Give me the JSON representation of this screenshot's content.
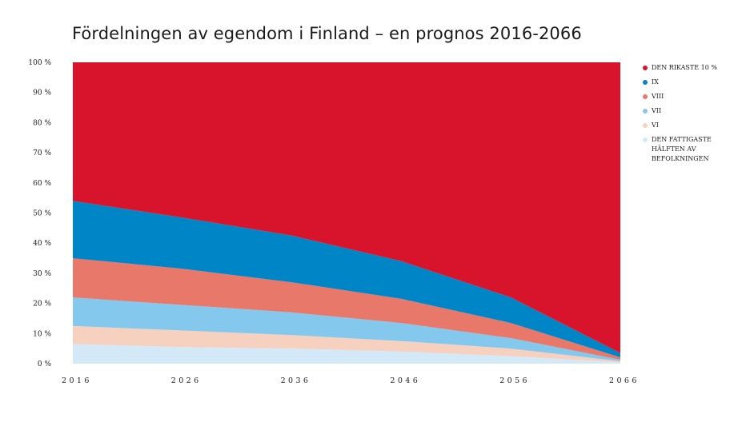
{
  "chart_data": {
    "type": "area",
    "stacked": true,
    "title": "Fördelningen av egendom i Finland – en prognos 2016-2066",
    "x": [
      2016,
      2026,
      2036,
      2046,
      2056,
      2066
    ],
    "x_tick_labels": [
      "2016",
      "2026",
      "2036",
      "2046",
      "2056",
      "2066"
    ],
    "y_tick_labels": [
      "0 %",
      "10 %",
      "20 %",
      "30 %",
      "40 %",
      "50 %",
      "60 %",
      "70 %",
      "80 %",
      "90 %",
      "100 %"
    ],
    "ylim": [
      0,
      100
    ],
    "grid": false,
    "legend_position": "right",
    "series": [
      {
        "name": "DEN FATTIGASTE HÄLFTEN AV BEFOLKNINGEN",
        "color": "#d3e9f7",
        "values": [
          6.5,
          5.5,
          5.0,
          4.0,
          2.5,
          0.4
        ]
      },
      {
        "name": "VI",
        "color": "#f7d1c0",
        "values": [
          6.0,
          5.5,
          4.5,
          3.5,
          2.5,
          0.4
        ]
      },
      {
        "name": "VII",
        "color": "#85c8ee",
        "values": [
          9.5,
          8.5,
          7.5,
          6.0,
          3.5,
          0.5
        ]
      },
      {
        "name": "VIII",
        "color": "#e8786a",
        "values": [
          13.0,
          12.0,
          10.0,
          8.0,
          5.0,
          0.8
        ]
      },
      {
        "name": "IX",
        "color": "#0085c7",
        "values": [
          19.0,
          17.0,
          15.5,
          12.5,
          8.5,
          1.4
        ]
      },
      {
        "name": "DEN RIKASTE 10 %",
        "color": "#d8142c",
        "values": [
          46.0,
          51.5,
          57.5,
          66.0,
          78.0,
          96.5
        ]
      }
    ]
  }
}
